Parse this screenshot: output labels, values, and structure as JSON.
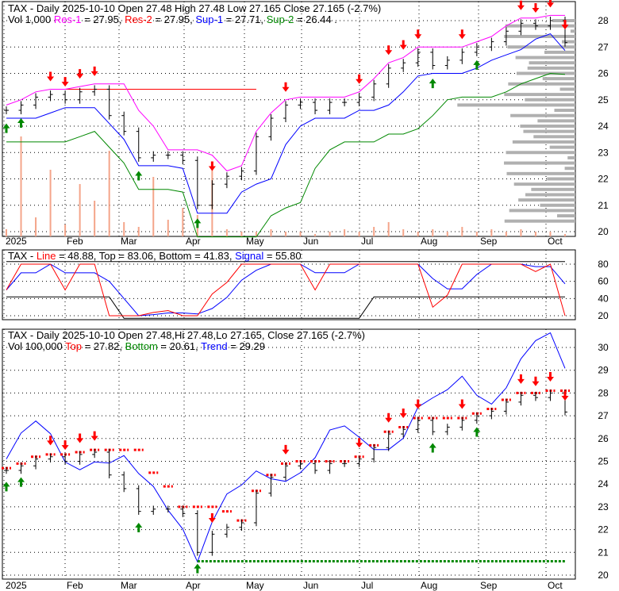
{
  "colors": {
    "res1": "#ff00ff",
    "res2": "#ff0000",
    "sup1": "#0000ff",
    "sup2": "#008800",
    "volume": "#f4a58a",
    "profile": "#b0b0b0",
    "up": "#008800",
    "down": "#ff0000"
  },
  "panel1": {
    "title": "TAX - Daily 2025-10-10 Open 27.48  High 27.48  Low 27.165  Close 27.165 (-2.7%)",
    "vol": "Vol 1,000 ",
    "res1": "Res-1",
    "res1_val": " = 27.95, ",
    "res2": "Res-2",
    "res2_val": " = 27.95, ",
    "sup1": "Sup-1",
    "sup1_val": " = 27.71, ",
    "sup2": "Sup-2",
    "sup2_val": " = 26.44 ."
  },
  "panel2": {
    "prefix": "TAX - ",
    "line": "Line",
    "line_val": " = 48.88, Top = 83.06, Bottom = 41.83, ",
    "signal": "Signal",
    "signal_val": " = 55.80"
  },
  "panel3": {
    "title": "TAX - Daily 2025-10-10 Open 27.48,Hi 27.48,Lo 27.165, Close 27.165 (-2.7%)",
    "vol": "Vol 100,000 ",
    "top": "Top",
    "top_val": " = 27.82, ",
    "bottom": "Bottom",
    "bottom_val": " = 20.61, ",
    "trend": "Trend",
    "trend_val": " = 29.29"
  },
  "chart_data": {
    "type": "line",
    "months": [
      "2025",
      "Feb",
      "Mar",
      "Apr",
      "May",
      "Jun",
      "Jul",
      "Aug",
      "Sep",
      "Oct"
    ],
    "y1_ticks": [
      20,
      21,
      22,
      23,
      24,
      25,
      26,
      27,
      28
    ],
    "y2_ticks": [
      20,
      40,
      60,
      80
    ],
    "y3_ticks": [
      20,
      21,
      22,
      23,
      24,
      25,
      26,
      27,
      28,
      29,
      30
    ],
    "weekly_close": [
      24.6,
      24.8,
      25.1,
      25.2,
      25.0,
      25.3,
      25.4,
      24.4,
      23.8,
      22.8,
      22.9,
      22.9,
      22.7,
      21.0,
      21.8,
      22.1,
      22.3,
      23.6,
      24.3,
      24.8,
      24.9,
      24.6,
      24.9,
      24.9,
      25.1,
      25.6,
      26.2,
      26.4,
      26.8,
      26.3,
      26.5,
      26.8,
      27.0,
      27.2,
      27.6,
      27.9,
      27.8,
      28.0,
      27.165
    ],
    "weekly_volume": [
      0.3,
      4.2,
      0.8,
      2.8,
      0.5,
      2.2,
      1.5,
      3.6,
      0.6,
      0.4,
      2.5,
      0.7,
      1.2,
      0.9,
      3.0,
      0.3,
      0.2,
      0.2,
      0.3,
      0.2,
      0.2,
      0.1,
      0.2,
      0.3,
      0.2,
      0.4,
      0.6,
      0.3,
      0.2,
      0.3,
      0.2,
      0.4,
      0.2,
      0.3,
      0.2,
      0.3,
      0.2,
      0.2,
      0.1
    ],
    "down_arrows": [
      3,
      4,
      5,
      6,
      14,
      19,
      24,
      26,
      27,
      28,
      31,
      35,
      36,
      37,
      38
    ],
    "up_arrows": [
      0,
      1,
      9,
      13,
      29,
      32
    ],
    "res2_level": 25.4,
    "bottom_level": 20.61
  }
}
